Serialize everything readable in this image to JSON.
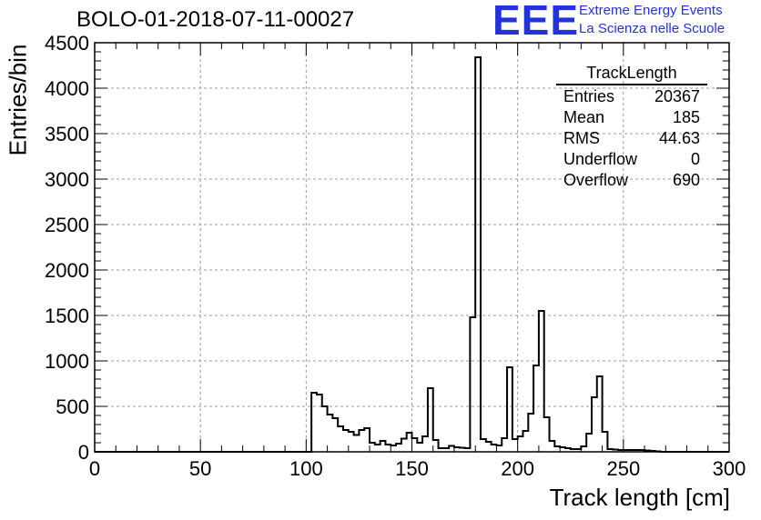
{
  "header": {
    "run_title": "BOLO-01-2018-07-11-00027",
    "logo_text": "EEE",
    "logo_line1": "Extreme Energy Events",
    "logo_line2": "La Scienza nelle Scuole",
    "logo_color": "#2233dd"
  },
  "stats_box": {
    "title": "TrackLength",
    "rows": [
      {
        "name": "Entries",
        "value": "20367"
      },
      {
        "name": "Mean",
        "value": "185"
      },
      {
        "name": "RMS",
        "value": "44.63"
      },
      {
        "name": "Underflow",
        "value": "0"
      },
      {
        "name": "Overflow",
        "value": "690"
      }
    ]
  },
  "chart_data": {
    "type": "bar",
    "title": "BOLO-01-2018-07-11-00027",
    "xlabel": "Track length [cm]",
    "ylabel": "Entries/bin",
    "xlim": [
      0,
      300
    ],
    "ylim": [
      0,
      4500
    ],
    "x_ticks": [
      0,
      50,
      100,
      150,
      200,
      250,
      300
    ],
    "y_ticks": [
      0,
      500,
      1000,
      1500,
      2000,
      2500,
      3000,
      3500,
      4000,
      4500
    ],
    "grid": true,
    "bin_edges_start": 0,
    "bin_width": 2.5,
    "series": [
      {
        "values": [
          0,
          0,
          0,
          0,
          0,
          0,
          0,
          0,
          0,
          0,
          0,
          0,
          0,
          0,
          0,
          0,
          0,
          0,
          0,
          0,
          0,
          0,
          0,
          0,
          0,
          0,
          0,
          0,
          0,
          0,
          0,
          0,
          0,
          0,
          0,
          0,
          0,
          0,
          0,
          0,
          0,
          650,
          630,
          500,
          410,
          370,
          280,
          240,
          220,
          185,
          240,
          260,
          100,
          80,
          120,
          80,
          70,
          90,
          145,
          210,
          150,
          100,
          170,
          700,
          130,
          40,
          40,
          65,
          50,
          45,
          40,
          1480,
          4340,
          140,
          110,
          80,
          70,
          150,
          930,
          140,
          170,
          230,
          420,
          950,
          1550,
          380,
          120,
          60,
          50,
          40,
          30,
          30,
          60,
          200,
          600,
          830,
          220,
          30,
          25,
          20,
          20,
          20,
          20,
          20,
          15,
          10,
          5,
          0,
          0,
          0,
          0,
          0,
          0,
          0,
          0,
          0,
          0,
          0,
          0,
          0
        ]
      }
    ]
  }
}
